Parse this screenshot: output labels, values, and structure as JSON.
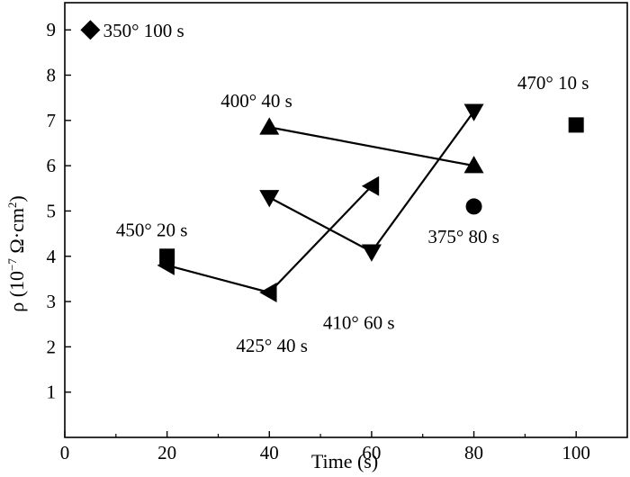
{
  "chart_data": {
    "type": "scatter",
    "xlabel": "Time (s)",
    "ylabel_main": "ρ (10",
    "ylabel_exp": "−7",
    "ylabel_tail": " Ω·cm",
    "ylabel_sq": "2",
    "ylabel_close": ")",
    "xlim": [
      0,
      110
    ],
    "ylim": [
      0,
      9.6
    ],
    "x_ticks": [
      0,
      20,
      40,
      60,
      80,
      100
    ],
    "y_ticks": [
      1,
      2,
      3,
      4,
      5,
      6,
      7,
      8,
      9
    ],
    "x_tick_labels": [
      "0",
      "20",
      "40",
      "60",
      "80",
      "100"
    ],
    "y_tick_labels": [
      "1",
      "2",
      "3",
      "4",
      "5",
      "6",
      "7",
      "8",
      "9"
    ],
    "grid": false,
    "points": [
      {
        "x": 5,
        "y": 9.0,
        "marker": "diamond"
      },
      {
        "x": 40,
        "y": 6.85,
        "marker": "triangle-up"
      },
      {
        "x": 80,
        "y": 6.0,
        "marker": "triangle-up"
      },
      {
        "x": 100,
        "y": 6.9,
        "marker": "square"
      },
      {
        "x": 80,
        "y": 5.1,
        "marker": "circle"
      },
      {
        "x": 40,
        "y": 5.3,
        "marker": "triangle-down"
      },
      {
        "x": 60,
        "y": 4.1,
        "marker": "triangle-down"
      },
      {
        "x": 80,
        "y": 7.2,
        "marker": "triangle-down"
      },
      {
        "x": 20,
        "y": 3.8,
        "marker": "triangle-left"
      },
      {
        "x": 40,
        "y": 3.2,
        "marker": "triangle-left"
      },
      {
        "x": 60,
        "y": 5.55,
        "marker": "triangle-left"
      },
      {
        "x": 20,
        "y": 4.0,
        "marker": "square"
      }
    ],
    "lines": [
      {
        "from": [
          40,
          6.85
        ],
        "to": [
          80,
          6.0
        ]
      },
      {
        "from": [
          40,
          5.3
        ],
        "to": [
          60,
          4.1
        ]
      },
      {
        "from": [
          60,
          4.1
        ],
        "to": [
          80,
          7.2
        ]
      },
      {
        "from": [
          20,
          3.8
        ],
        "to": [
          40,
          3.2
        ]
      },
      {
        "from": [
          40,
          3.2
        ],
        "to": [
          60,
          5.55
        ]
      }
    ],
    "annotations": [
      {
        "text": "350° 100 s",
        "x": 7.5,
        "y": 9.0
      },
      {
        "text": "400° 40 s",
        "x": 30.5,
        "y": 7.45
      },
      {
        "text": "470° 10 s",
        "x": 88.5,
        "y": 7.85
      },
      {
        "text": "450° 20 s",
        "x": 10,
        "y": 4.6
      },
      {
        "text": "375° 80 s",
        "x": 71,
        "y": 4.45
      },
      {
        "text": "410° 60 s",
        "x": 50.5,
        "y": 2.55
      },
      {
        "text": "425° 40 s",
        "x": 33.5,
        "y": 2.05
      }
    ]
  }
}
